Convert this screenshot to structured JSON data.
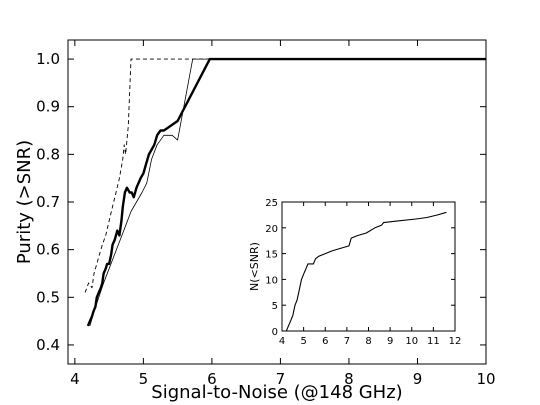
{
  "chart_data": [
    {
      "type": "line",
      "title": "",
      "xlabel": "Signal-to-Noise (@148 GHz)",
      "ylabel": "Purity (>SNR)",
      "xlim": [
        3.9,
        10.0
      ],
      "ylim": [
        0.36,
        1.04
      ],
      "xticks": [
        "4",
        "5",
        "6",
        "7",
        "8",
        "9",
        "10"
      ],
      "yticks": [
        "0.4",
        "0.5",
        "0.6",
        "0.7",
        "0.8",
        "0.9",
        "1.0"
      ],
      "grid": false,
      "series": [
        {
          "style": "thick-solid",
          "color": "#000000",
          "x": [
            4.19,
            4.22,
            4.25,
            4.27,
            4.3,
            4.32,
            4.35,
            4.38,
            4.4,
            4.42,
            4.45,
            4.47,
            4.5,
            4.53,
            4.55,
            4.58,
            4.6,
            4.62,
            4.65,
            4.68,
            4.7,
            4.73,
            4.76,
            4.8,
            4.83,
            4.86,
            4.9,
            4.93,
            4.96,
            5.0,
            5.04,
            5.08,
            5.12,
            5.16,
            5.2,
            5.25,
            5.3,
            5.5,
            5.97,
            10.0
          ],
          "y": [
            0.44,
            0.45,
            0.46,
            0.47,
            0.48,
            0.5,
            0.51,
            0.52,
            0.53,
            0.55,
            0.56,
            0.57,
            0.57,
            0.59,
            0.61,
            0.62,
            0.63,
            0.64,
            0.63,
            0.66,
            0.69,
            0.72,
            0.73,
            0.72,
            0.72,
            0.71,
            0.73,
            0.74,
            0.75,
            0.76,
            0.78,
            0.8,
            0.81,
            0.82,
            0.84,
            0.85,
            0.85,
            0.87,
            1.0,
            1.0
          ]
        },
        {
          "style": "thin-solid",
          "color": "#000000",
          "x": [
            4.22,
            4.28,
            4.35,
            4.42,
            4.5,
            4.58,
            4.66,
            4.74,
            4.82,
            4.9,
            4.98,
            5.05,
            5.12,
            5.2,
            5.3,
            5.42,
            5.5,
            5.72,
            5.82,
            10.0
          ],
          "y": [
            0.44,
            0.47,
            0.5,
            0.53,
            0.56,
            0.59,
            0.62,
            0.65,
            0.68,
            0.7,
            0.72,
            0.74,
            0.79,
            0.82,
            0.84,
            0.84,
            0.83,
            1.0,
            1.0,
            1.0
          ]
        },
        {
          "style": "dashed",
          "color": "#000000",
          "x": [
            4.15,
            4.2,
            4.25,
            4.28,
            4.32,
            4.36,
            4.4,
            4.45,
            4.5,
            4.55,
            4.6,
            4.65,
            4.7,
            4.72,
            4.74,
            4.78,
            4.82,
            5.0,
            10.0
          ],
          "y": [
            0.51,
            0.53,
            0.52,
            0.55,
            0.57,
            0.59,
            0.61,
            0.63,
            0.66,
            0.69,
            0.72,
            0.75,
            0.79,
            0.82,
            0.8,
            0.86,
            1.0,
            1.0,
            1.0
          ]
        }
      ]
    },
    {
      "type": "line",
      "title": "",
      "xlabel": "",
      "ylabel": "N(<SNR)",
      "xlim": [
        4,
        12
      ],
      "ylim": [
        0,
        25
      ],
      "xticks": [
        "4",
        "5",
        "6",
        "7",
        "8",
        "9",
        "10",
        "11",
        "12"
      ],
      "yticks": [
        "0",
        "5",
        "10",
        "15",
        "20",
        "25"
      ],
      "grid": false,
      "series": [
        {
          "style": "solid",
          "color": "#000000",
          "x": [
            4.2,
            4.3,
            4.4,
            4.5,
            4.55,
            4.6,
            4.7,
            4.75,
            4.8,
            4.85,
            4.9,
            5.0,
            5.1,
            5.2,
            5.45,
            5.55,
            5.7,
            6.0,
            6.3,
            6.7,
            7.1,
            7.2,
            7.5,
            7.9,
            8.3,
            8.6,
            8.7,
            9.3,
            10.2,
            10.7,
            11.2,
            11.6
          ],
          "y": [
            0,
            1,
            2,
            3,
            4,
            5,
            6,
            7,
            8,
            9,
            10,
            11,
            12,
            13,
            13,
            14,
            14.5,
            15,
            15.5,
            16,
            16.5,
            18,
            18.5,
            19,
            20,
            20.5,
            21,
            21.3,
            21.7,
            22,
            22.5,
            23
          ]
        }
      ]
    }
  ]
}
